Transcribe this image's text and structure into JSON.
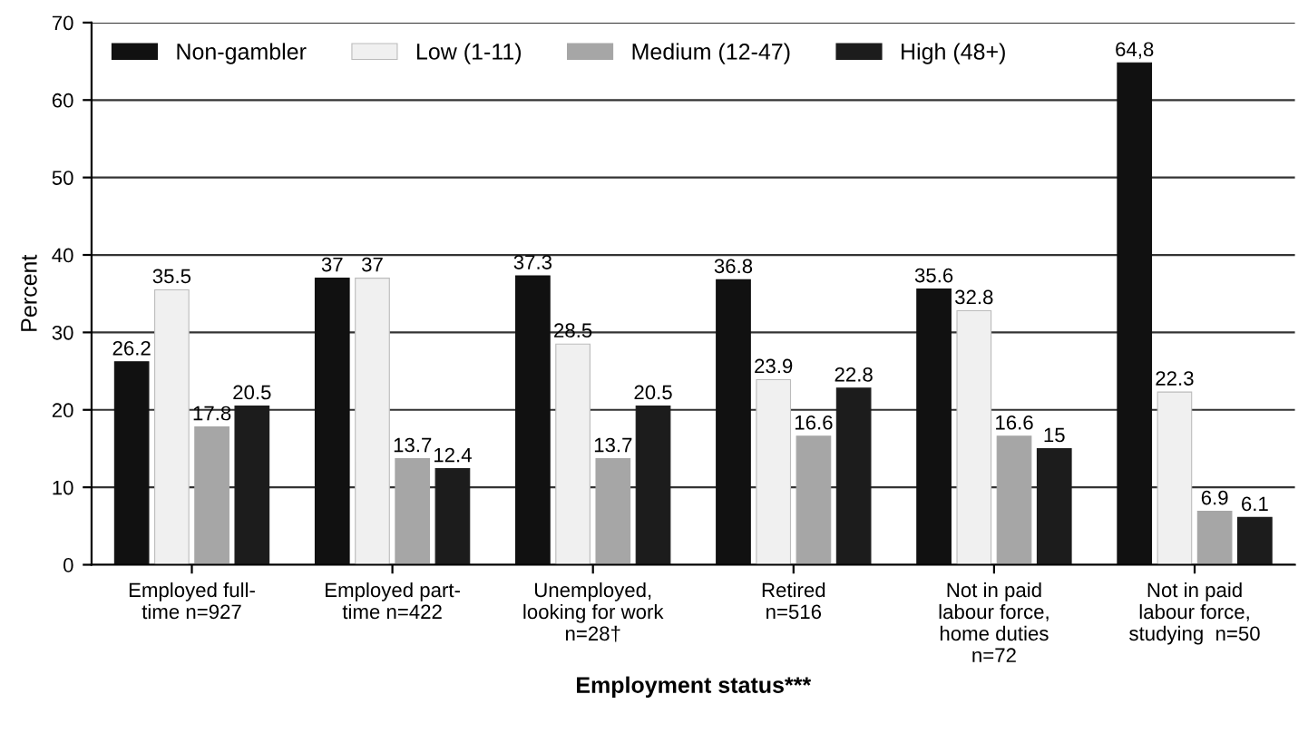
{
  "chart_data": {
    "type": "bar",
    "xlabel": "Employment status***",
    "ylabel": "Percent",
    "categories": [
      "Employed full-\ntime n=927",
      "Employed part-\ntime n=422",
      "Unemployed,\nlooking for work\nn=28†",
      "Retired\nn=516",
      "Not in paid\nlabour force,\nhome duties\nn=72",
      "Not in paid\nlabour force,\nstudying  n=50"
    ],
    "series": [
      {
        "name": "Non-gambler",
        "color": "#111111",
        "values": [
          26.2,
          37,
          37.3,
          36.8,
          35.6,
          64.8
        ],
        "value_labels": [
          "26.2",
          "37",
          "37.3",
          "36.8",
          "35.6",
          "64,8"
        ]
      },
      {
        "name": "Low (1-11)",
        "color": "#f0f0f0",
        "values": [
          35.5,
          37,
          28.5,
          23.9,
          32.8,
          22.3
        ],
        "value_labels": [
          "35.5",
          "37",
          "28.5",
          "23.9",
          "32.8",
          "22.3"
        ]
      },
      {
        "name": "Medium (12-47)",
        "color": "#a6a6a6",
        "values": [
          17.8,
          13.7,
          13.7,
          16.6,
          16.6,
          6.9
        ],
        "value_labels": [
          "17.8",
          "13.7",
          "13.7",
          "16.6",
          "16.6",
          "6.9"
        ]
      },
      {
        "name": "High (48+)",
        "color": "#1c1c1c",
        "values": [
          20.5,
          12.4,
          20.5,
          22.8,
          15,
          6.1
        ],
        "value_labels": [
          "20.5",
          "12.4",
          "20.5",
          "22.8",
          "15",
          "6.1"
        ]
      }
    ],
    "ylim": [
      0,
      70
    ],
    "yticks": [
      0,
      10,
      20,
      30,
      40,
      50,
      60,
      70
    ],
    "grid": "y",
    "legend": "top"
  }
}
